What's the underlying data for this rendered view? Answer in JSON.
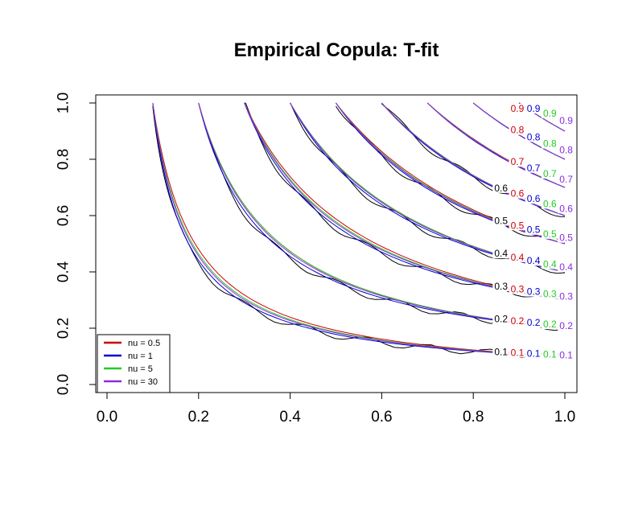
{
  "chart_data": {
    "type": "line",
    "title": "Empirical Copula: T-fit",
    "xlabel": "",
    "ylabel": "",
    "xlim": [
      0.0,
      1.0
    ],
    "ylim": [
      0.0,
      1.0
    ],
    "grid": false,
    "x_ticks": [
      "0.0",
      "0.2",
      "0.4",
      "0.6",
      "0.8",
      "1.0"
    ],
    "y_ticks": [
      "0.0",
      "0.2",
      "0.4",
      "0.6",
      "0.8",
      "1.0"
    ],
    "legend_position": "bottom-left",
    "contour_levels": [
      0.1,
      0.2,
      0.3,
      0.4,
      0.5,
      0.6,
      0.7,
      0.8,
      0.9
    ],
    "series": [
      {
        "name": "Empirical",
        "color": "#000000",
        "level_labels": [
          "0.1",
          "0.2",
          "0.3",
          "0.4",
          "0.5",
          "0.6"
        ],
        "in_legend": false
      },
      {
        "name": "nu = 0.5",
        "color": "#cc0000",
        "level_labels": [
          "0.1",
          "0.2",
          "0.3",
          "0.4",
          "0.5",
          "0.6",
          "0.7",
          "0.8",
          "0.9"
        ],
        "in_legend": true
      },
      {
        "name": "nu = 1",
        "color": "#0000cc",
        "level_labels": [
          "0.1",
          "0.2",
          "0.3",
          "0.4",
          "0.5",
          "0.6",
          "0.7",
          "0.8",
          "0.9"
        ],
        "in_legend": true
      },
      {
        "name": "nu = 5",
        "color": "#22cc22",
        "level_labels": [
          "0.1",
          "0.2",
          "0.3",
          "0.4",
          "0.5",
          "0.6",
          "0.7",
          "0.8",
          "0.9"
        ],
        "in_legend": true
      },
      {
        "name": "nu = 30",
        "color": "#8a2be2",
        "level_labels": [
          "0.1",
          "0.2",
          "0.3",
          "0.4",
          "0.5",
          "0.6",
          "0.7",
          "0.8",
          "0.9"
        ],
        "in_legend": true
      }
    ]
  }
}
